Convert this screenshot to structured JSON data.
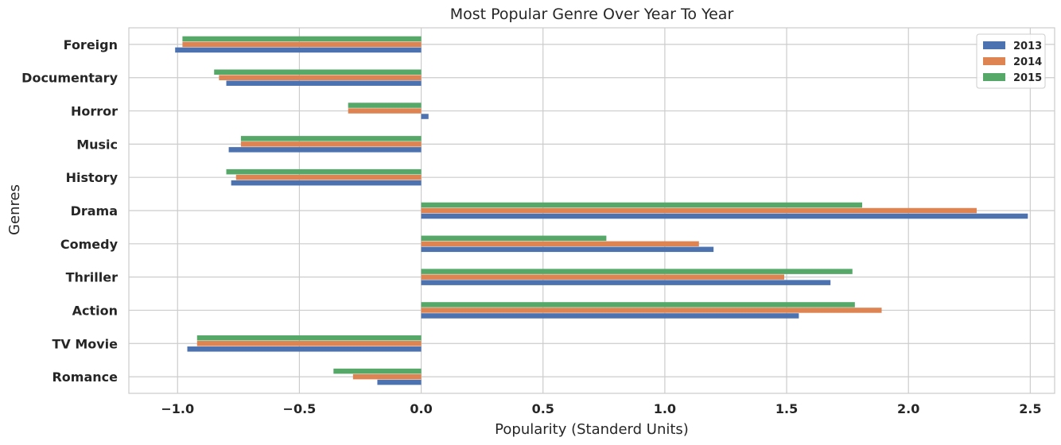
{
  "chart_data": {
    "type": "bar",
    "orientation": "horizontal",
    "title": "Most Popular Genre Over Year To Year",
    "xlabel": "Popularity (Standerd Units)",
    "ylabel": "Genres",
    "xlim": [
      -1.2,
      2.6
    ],
    "xticks": [
      -1.0,
      -0.5,
      0.0,
      0.5,
      1.0,
      1.5,
      2.0,
      2.5
    ],
    "xtick_labels": [
      "−1.0",
      "−0.5",
      "0.0",
      "0.5",
      "1.0",
      "1.5",
      "2.0",
      "2.5"
    ],
    "grid": true,
    "legend_position": "top-right",
    "categories": [
      "Romance",
      "TV Movie",
      "Action",
      "Thriller",
      "Comedy",
      "Drama",
      "History",
      "Music",
      "Horror",
      "Documentary",
      "Foreign"
    ],
    "series": [
      {
        "name": "2013",
        "color": "#4c72b0",
        "values": [
          -0.18,
          -0.96,
          1.55,
          1.68,
          1.2,
          2.49,
          -0.78,
          -0.79,
          0.03,
          -0.8,
          -1.01
        ]
      },
      {
        "name": "2014",
        "color": "#dd8452",
        "values": [
          -0.28,
          -0.92,
          1.89,
          1.49,
          1.14,
          2.28,
          -0.76,
          -0.74,
          -0.3,
          -0.83,
          -0.98
        ]
      },
      {
        "name": "2015",
        "color": "#55a868",
        "values": [
          -0.36,
          -0.92,
          1.78,
          1.77,
          0.76,
          1.81,
          -0.8,
          -0.74,
          -0.3,
          -0.85,
          -0.98
        ]
      }
    ]
  }
}
